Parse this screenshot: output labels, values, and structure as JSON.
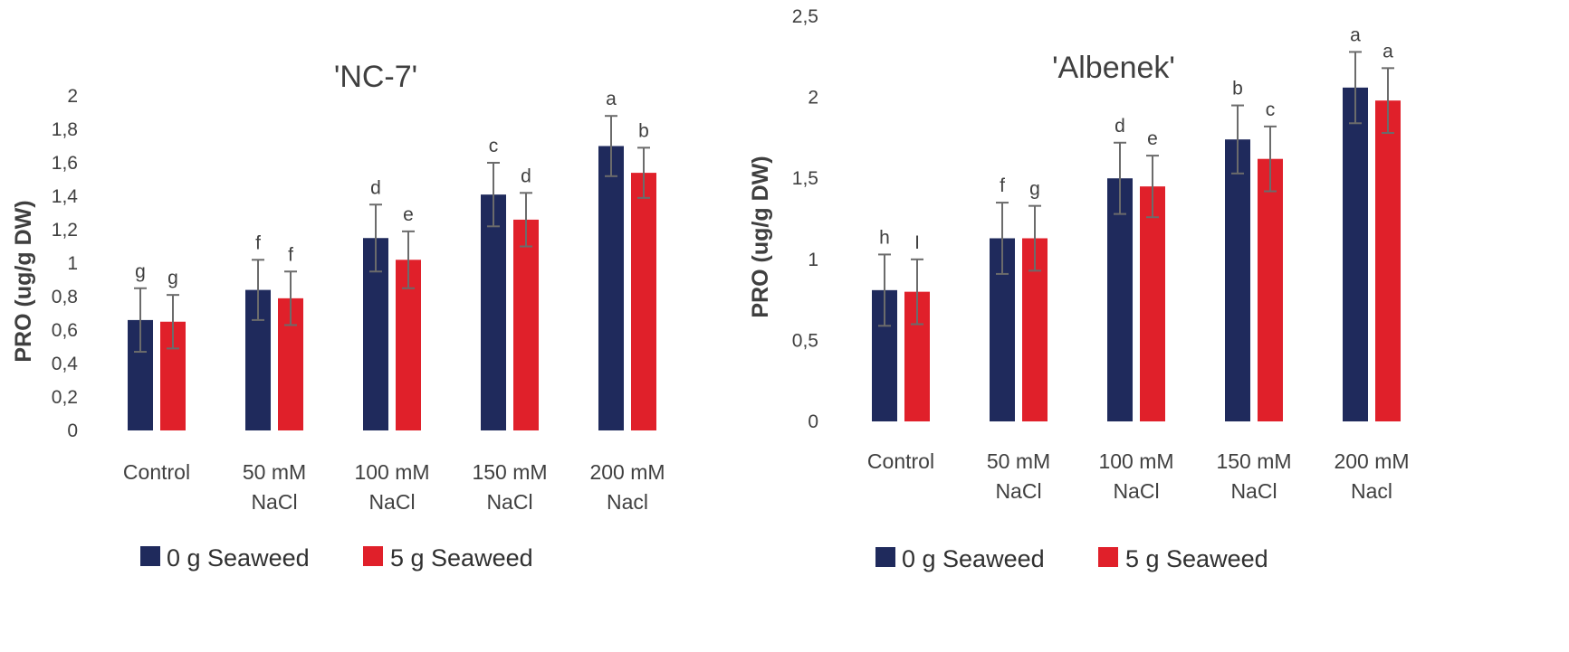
{
  "chart_data": [
    {
      "type": "bar",
      "title": "'NC-7'",
      "ylabel": "PRO (ug/g DW)",
      "xlabel": "",
      "ylim": [
        0,
        2
      ],
      "yticks": [
        "0",
        "0,2",
        "0,4",
        "0,6",
        "0,8",
        "1",
        "1,2",
        "1,4",
        "1,6",
        "1,8",
        "2"
      ],
      "ytick_values": [
        0,
        0.2,
        0.4,
        0.6,
        0.8,
        1.0,
        1.2,
        1.4,
        1.6,
        1.8,
        2.0
      ],
      "categories": [
        [
          "Control"
        ],
        [
          "50 mM",
          "NaCl"
        ],
        [
          "100 mM",
          "NaCl"
        ],
        [
          "150 mM",
          "NaCl"
        ],
        [
          "200 mM",
          "Nacl"
        ]
      ],
      "series": [
        {
          "name": "0 g Seaweed",
          "color": "#1f2a5c",
          "values": [
            0.66,
            0.84,
            1.15,
            1.41,
            1.7
          ],
          "errors": [
            0.19,
            0.18,
            0.2,
            0.19,
            0.18
          ],
          "letters": [
            "g",
            "f",
            "d",
            "c",
            "a"
          ]
        },
        {
          "name": "5 g Seaweed",
          "color": "#e0202a",
          "values": [
            0.65,
            0.79,
            1.02,
            1.26,
            1.54
          ],
          "errors": [
            0.16,
            0.16,
            0.17,
            0.16,
            0.15
          ],
          "letters": [
            "g",
            "f",
            "e",
            "d",
            "b"
          ]
        }
      ],
      "legend_position": "bottom"
    },
    {
      "type": "bar",
      "title": "'Albenek'",
      "ylabel": "PRO (ug/g DW)",
      "xlabel": "",
      "ylim": [
        0,
        2.5
      ],
      "yticks": [
        "0",
        "0,5",
        "1",
        "1,5",
        "2",
        "2,5"
      ],
      "ytick_values": [
        0,
        0.5,
        1.0,
        1.5,
        2.0,
        2.5
      ],
      "categories": [
        [
          "Control"
        ],
        [
          "50 mM",
          "NaCl"
        ],
        [
          "100 mM",
          "NaCl"
        ],
        [
          "150 mM",
          "NaCl"
        ],
        [
          "200 mM",
          "Nacl"
        ]
      ],
      "series": [
        {
          "name": "0 g Seaweed",
          "color": "#1f2a5c",
          "values": [
            0.81,
            1.13,
            1.5,
            1.74,
            2.06
          ],
          "errors": [
            0.22,
            0.22,
            0.22,
            0.21,
            0.22
          ],
          "letters": [
            "h",
            "f",
            "d",
            "b",
            "a"
          ]
        },
        {
          "name": "5 g Seaweed",
          "color": "#e0202a",
          "values": [
            0.8,
            1.13,
            1.45,
            1.62,
            1.98
          ],
          "errors": [
            0.2,
            0.2,
            0.19,
            0.2,
            0.2
          ],
          "letters": [
            "I",
            "g",
            "e",
            "c",
            "a"
          ]
        }
      ],
      "legend_position": "bottom"
    }
  ]
}
